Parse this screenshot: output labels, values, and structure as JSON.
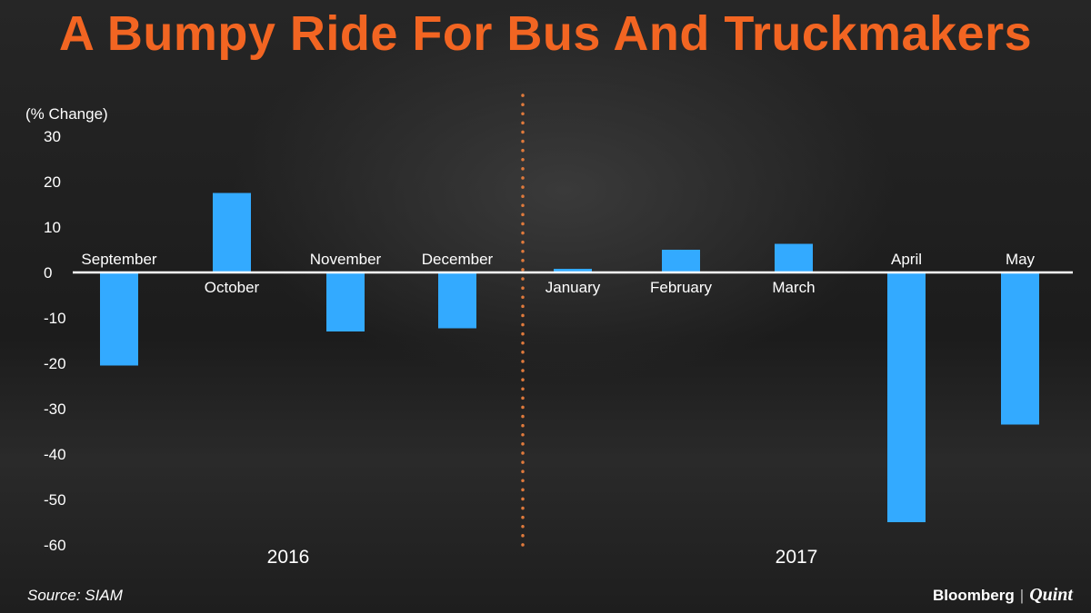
{
  "title": "A Bumpy Ride For Bus And Truckmakers",
  "source": "Source: SIAM",
  "brand": {
    "name1": "Bloomberg",
    "separator": "|",
    "name2": "Quint"
  },
  "colors": {
    "title": "#f26522",
    "bar": "#33aaff",
    "divider": "#e07a3c"
  },
  "chart_data": {
    "type": "bar",
    "ylabel": "(% Change)",
    "ylim": [
      -60,
      30
    ],
    "yticks": [
      30,
      20,
      10,
      0,
      -10,
      -20,
      -30,
      -40,
      -50,
      -60
    ],
    "grid": false,
    "categories": [
      "September",
      "October",
      "November",
      "December",
      "January",
      "February",
      "March",
      "April",
      "May"
    ],
    "values": [
      -20.5,
      17.5,
      -13,
      -12.3,
      0.8,
      5,
      6.3,
      -55,
      -33.5
    ],
    "year_groups": [
      {
        "label": "2016",
        "categories": [
          "September",
          "October",
          "November",
          "December"
        ]
      },
      {
        "label": "2017",
        "categories": [
          "January",
          "February",
          "March",
          "April",
          "May"
        ]
      }
    ]
  }
}
